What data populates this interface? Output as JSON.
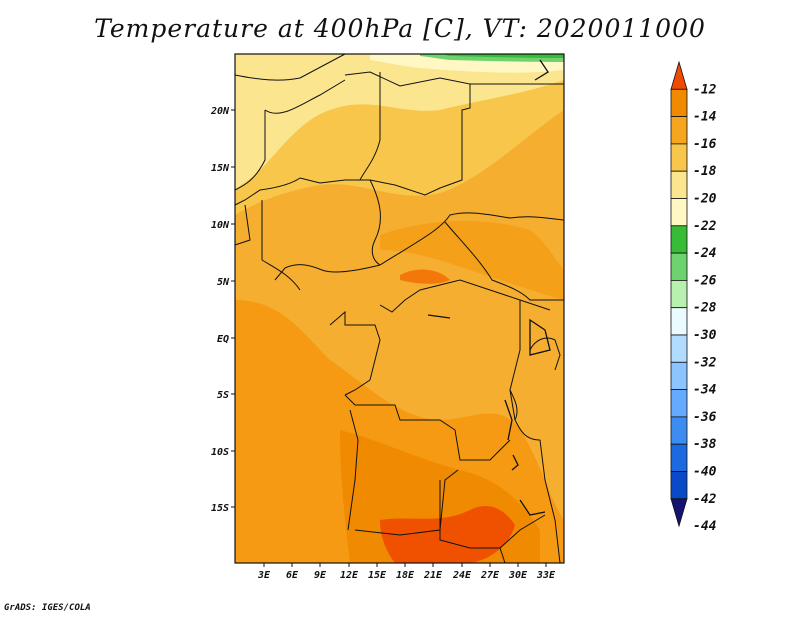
{
  "title": "Temperature at 400hPa [C], VT: 2020011000",
  "credit": "GrADS: IGES/COLA",
  "lat_labels": [
    "20N",
    "15N",
    "10N",
    "5N",
    "EQ",
    "5S",
    "10S",
    "15S"
  ],
  "lon_labels": [
    "3E",
    "6E",
    "9E",
    "12E",
    "15E",
    "18E",
    "21E",
    "24E",
    "27E",
    "30E",
    "33E"
  ],
  "colorbar": {
    "labels": [
      "-12",
      "-14",
      "-16",
      "-18",
      "-20",
      "-22",
      "-24",
      "-26",
      "-28",
      "-30",
      "-32",
      "-34",
      "-36",
      "-38",
      "-40",
      "-42",
      "-44"
    ],
    "colors": [
      "#f04a00",
      "#f08a00",
      "#f5a61c",
      "#f7c64a",
      "#fbe58f",
      "#fff7c4",
      "#36bc36",
      "#6ed36e",
      "#b8f0b0",
      "#e9fbff",
      "#b2dcff",
      "#8cc4ff",
      "#64aaff",
      "#3c8cf2",
      "#1c6ae0",
      "#0a4ac8",
      "#141470"
    ]
  }
}
